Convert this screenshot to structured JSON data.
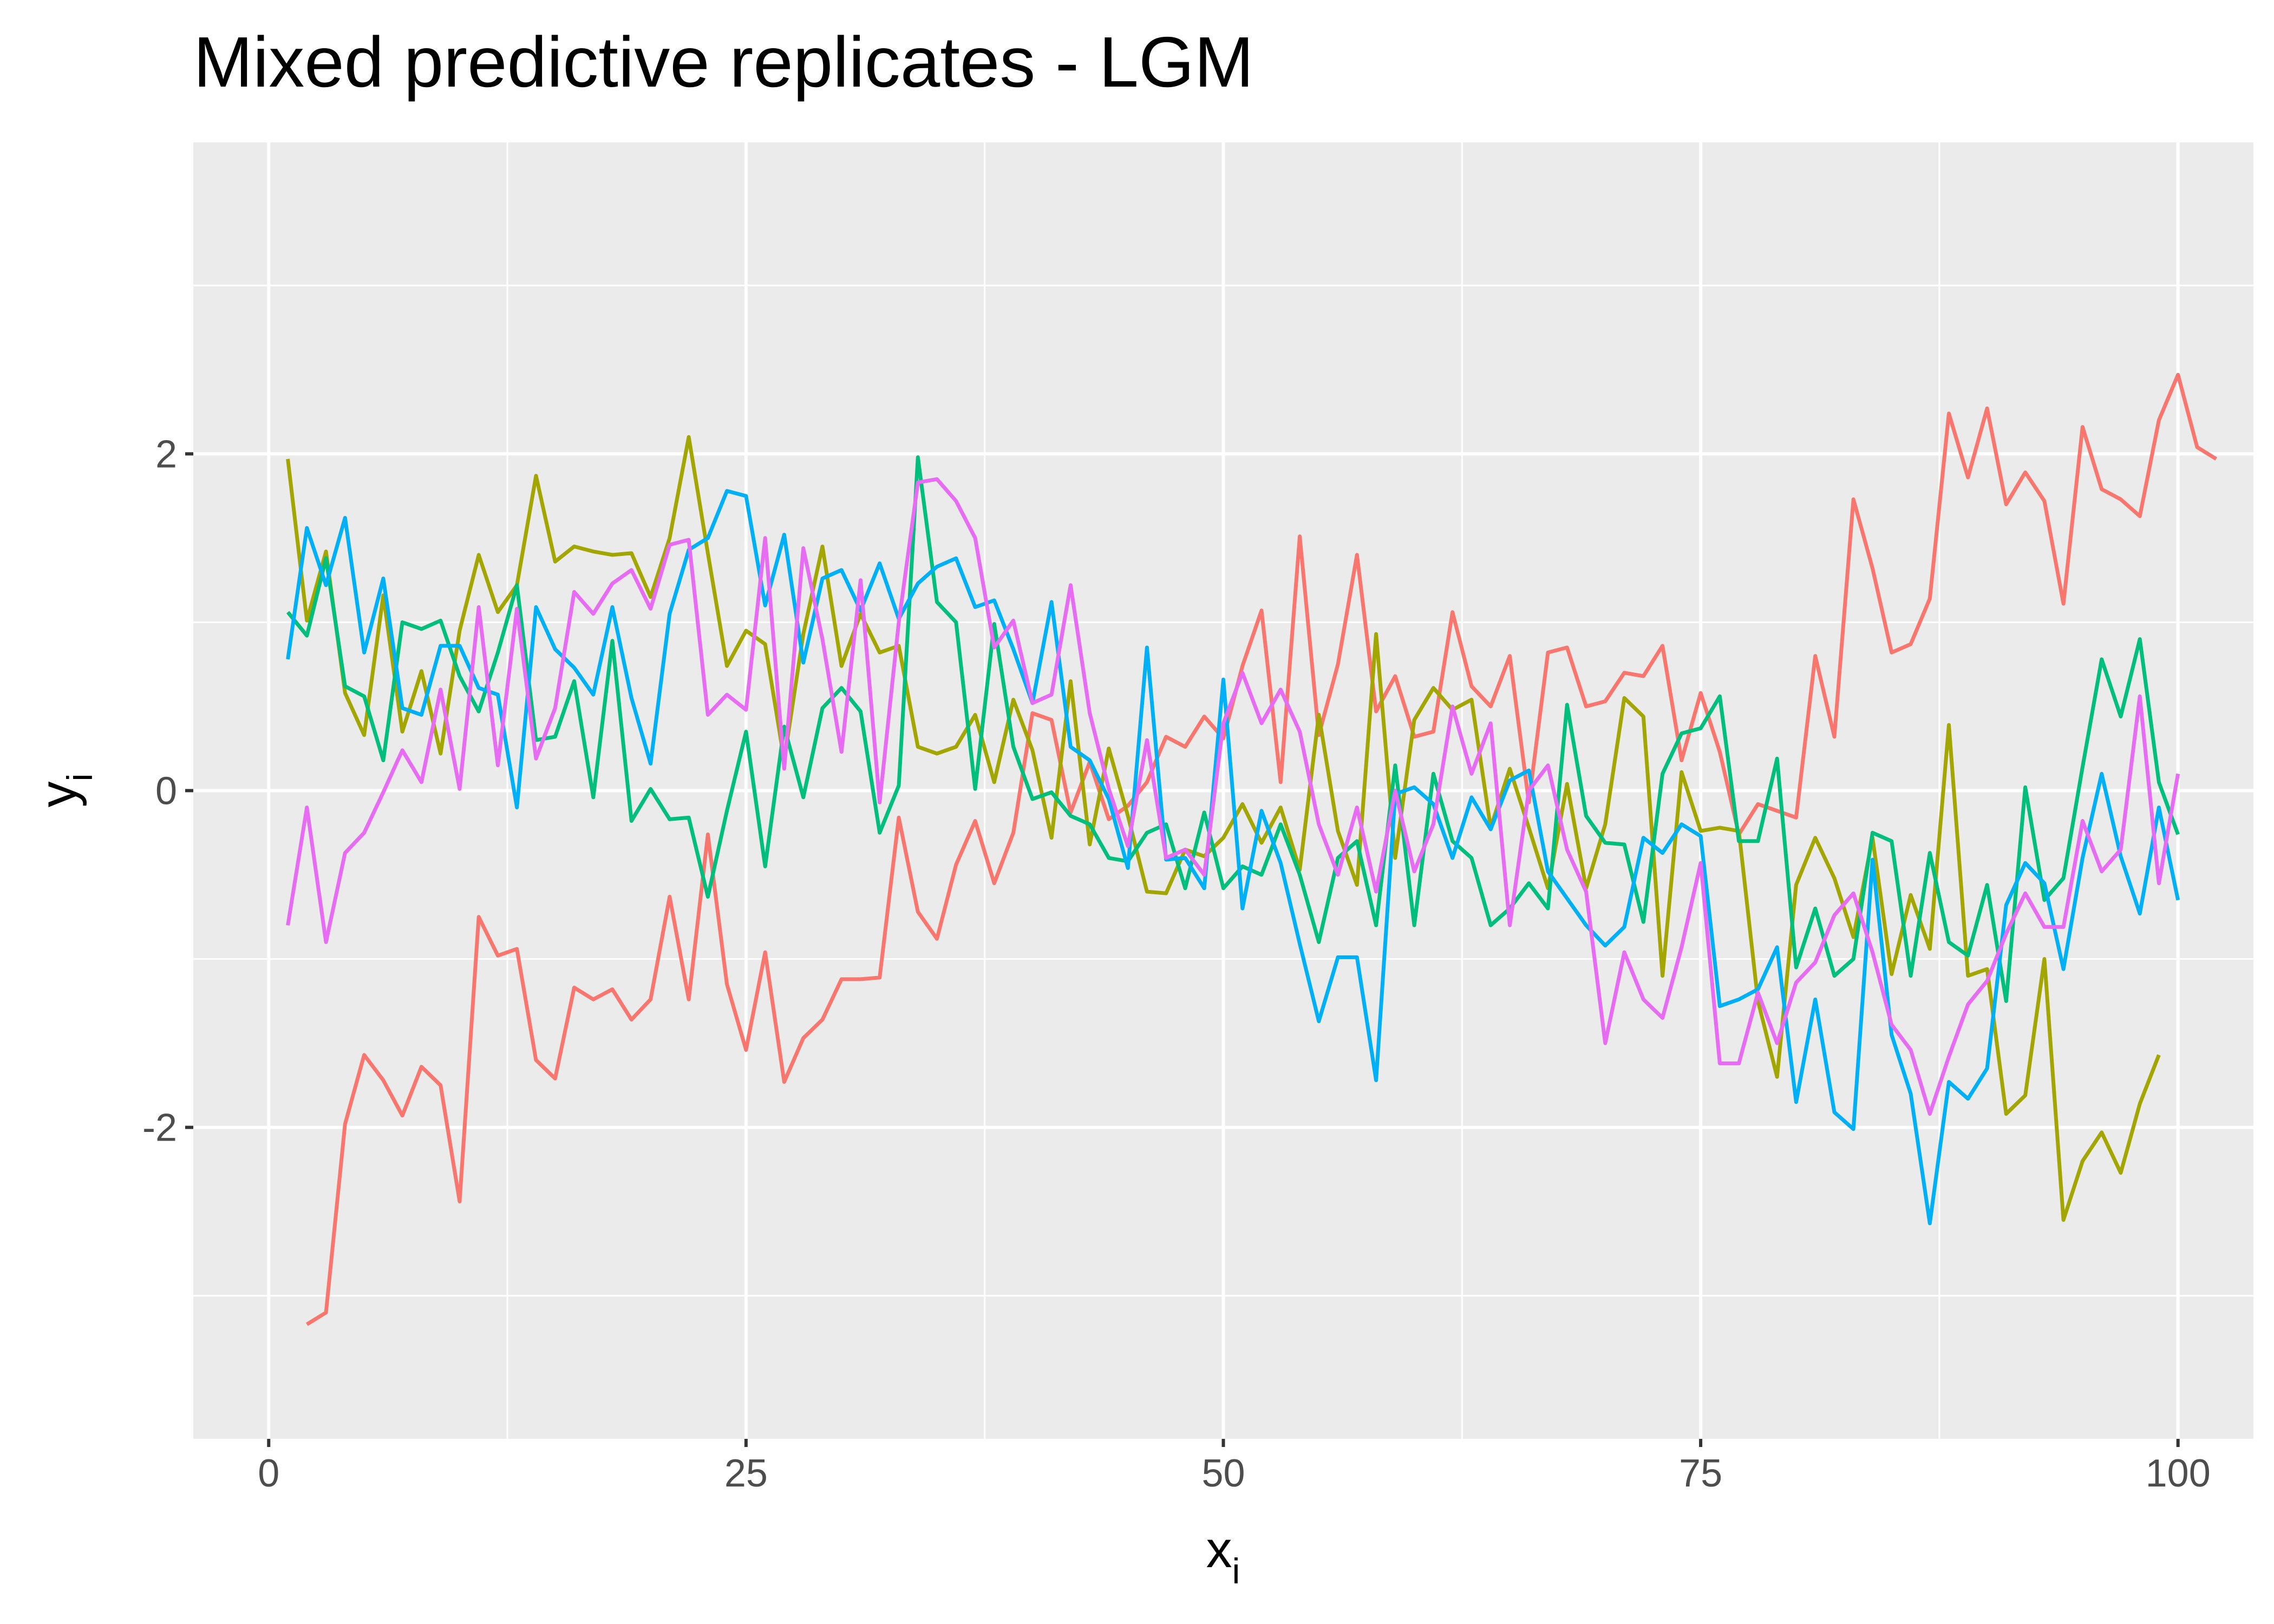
{
  "chart_data": {
    "type": "line",
    "title": "Mixed predictive replicates - LGM",
    "xlabel": "x",
    "xlabel_sub": "i",
    "ylabel": "y",
    "ylabel_sub": "i",
    "xlim": [
      -3.95,
      103.95
    ],
    "ylim": [
      -3.85,
      3.85
    ],
    "x_ticks": [
      0,
      25,
      50,
      75,
      100
    ],
    "x_tick_labels": [
      "0",
      "25",
      "50",
      "75",
      "100"
    ],
    "y_ticks": [
      -2,
      0,
      2
    ],
    "y_tick_labels": [
      "-2",
      "0",
      "2"
    ],
    "x_minor": [
      12.5,
      37.5,
      62.5,
      87.5
    ],
    "y_minor": [
      -3,
      -1,
      1,
      3
    ],
    "grid": true,
    "legend": "none",
    "colors": {
      "panel": "#ebebeb",
      "grid": "#ffffff",
      "tick": "#333333",
      "tick_label": "#4d4d4d"
    },
    "series": [
      {
        "color": "#F8766D",
        "x_start": 2,
        "values": [
          -3.17,
          -3.1,
          -1.98,
          -1.57,
          -1.72,
          -1.93,
          -1.64,
          -1.75,
          -2.44,
          -0.75,
          -0.98,
          -0.94,
          -1.6,
          -1.71,
          -1.17,
          -1.24,
          -1.18,
          -1.36,
          -1.24,
          -0.63,
          -1.24,
          -0.26,
          -1.15,
          -1.54,
          -0.96,
          -1.73,
          -1.47,
          -1.36,
          -1.12,
          -1.12,
          -1.11,
          -0.16,
          -0.72,
          -0.88,
          -0.44,
          -0.18,
          -0.55,
          -0.25,
          0.46,
          0.42,
          -0.13,
          0.17,
          -0.17,
          -0.09,
          0.05,
          0.32,
          0.26,
          0.44,
          0.31,
          0.74,
          1.07,
          0.05,
          1.51,
          0.33,
          0.75,
          1.4,
          0.47,
          0.68,
          0.32,
          0.35,
          1.06,
          0.62,
          0.5,
          0.8,
          -0.07,
          0.82,
          0.85,
          0.5,
          0.53,
          0.7,
          0.68,
          0.86,
          0.18,
          0.58,
          0.23,
          -0.26,
          -0.08,
          -0.12,
          -0.16,
          0.8,
          0.32,
          1.73,
          1.32,
          0.82,
          0.87,
          1.14,
          2.24,
          1.86,
          2.27,
          1.7,
          1.89,
          1.72,
          1.11,
          2.16,
          1.79,
          1.73,
          1.63,
          2.2,
          2.47,
          2.04,
          1.97
        ]
      },
      {
        "color": "#A3A500",
        "x_start": 1,
        "values": [
          1.97,
          1.01,
          1.42,
          0.58,
          0.33,
          1.16,
          0.35,
          0.71,
          0.22,
          0.95,
          1.4,
          1.06,
          1.22,
          1.87,
          1.36,
          1.45,
          1.42,
          1.4,
          1.41,
          1.15,
          1.5,
          2.1,
          1.41,
          0.74,
          0.95,
          0.87,
          0.18,
          0.93,
          1.45,
          0.74,
          1.05,
          0.82,
          0.86,
          0.26,
          0.22,
          0.26,
          0.45,
          0.05,
          0.54,
          0.24,
          -0.28,
          0.65,
          -0.32,
          0.25,
          -0.15,
          -0.6,
          -0.61,
          -0.35,
          -0.39,
          -0.28,
          -0.08,
          -0.31,
          -0.1,
          -0.47,
          0.45,
          -0.24,
          -0.56,
          0.93,
          -0.4,
          0.42,
          0.61,
          0.48,
          0.54,
          -0.22,
          0.13,
          -0.22,
          -0.58,
          0.04,
          -0.58,
          -0.2,
          0.55,
          0.44,
          -1.1,
          0.11,
          -0.24,
          -0.22,
          -0.24,
          -1.25,
          -1.7,
          -0.56,
          -0.28,
          -0.52,
          -0.87,
          -0.28,
          -1.09,
          -0.62,
          -0.94,
          0.39,
          -1.1,
          -1.06,
          -1.92,
          -1.81,
          -1.0,
          -2.55,
          -2.2,
          -2.03,
          -2.27,
          -1.86,
          -1.57
        ]
      },
      {
        "color": "#00BF7D",
        "x_start": 1,
        "values": [
          1.06,
          0.92,
          1.38,
          0.62,
          0.56,
          0.18,
          1.0,
          0.96,
          1.01,
          0.68,
          0.47,
          0.82,
          1.22,
          0.3,
          0.32,
          0.65,
          -0.04,
          0.89,
          -0.18,
          0.01,
          -0.17,
          -0.16,
          -0.63,
          -0.12,
          0.35,
          -0.45,
          0.38,
          -0.04,
          0.49,
          0.61,
          0.47,
          -0.25,
          0.03,
          1.98,
          1.12,
          1.0,
          0.01,
          0.99,
          0.26,
          -0.05,
          -0.01,
          -0.15,
          -0.2,
          -0.4,
          -0.42,
          -0.25,
          -0.2,
          -0.58,
          -0.13,
          -0.58,
          -0.45,
          -0.5,
          -0.2,
          -0.5,
          -0.9,
          -0.4,
          -0.3,
          -0.8,
          0.15,
          -0.8,
          0.1,
          -0.3,
          -0.4,
          -0.8,
          -0.7,
          -0.55,
          -0.7,
          0.51,
          -0.15,
          -0.31,
          -0.32,
          -0.78,
          0.1,
          0.34,
          0.37,
          0.56,
          -0.3,
          -0.3,
          0.19,
          -1.05,
          -0.7,
          -1.1,
          -1.0,
          -0.25,
          -0.3,
          -1.1,
          -0.37,
          -0.9,
          -0.98,
          -0.56,
          -1.25,
          0.02,
          -0.65,
          -0.52,
          0.14,
          0.78,
          0.44,
          0.9,
          0.05,
          -0.26
        ]
      },
      {
        "color": "#00B0F6",
        "x_start": 1,
        "values": [
          0.78,
          1.56,
          1.22,
          1.62,
          0.82,
          1.26,
          0.49,
          0.45,
          0.86,
          0.86,
          0.61,
          0.57,
          -0.1,
          1.09,
          0.84,
          0.73,
          0.57,
          1.09,
          0.55,
          0.16,
          1.05,
          1.43,
          1.5,
          1.78,
          1.75,
          1.1,
          1.52,
          0.76,
          1.26,
          1.31,
          1.07,
          1.35,
          1.02,
          1.23,
          1.33,
          1.38,
          1.09,
          1.13,
          0.84,
          0.52,
          1.12,
          0.26,
          0.18,
          -0.05,
          -0.46,
          0.85,
          -0.41,
          -0.4,
          -0.58,
          0.66,
          -0.7,
          -0.12,
          -0.43,
          -0.91,
          -1.37,
          -0.99,
          -0.99,
          -1.72,
          -0.02,
          0.02,
          -0.08,
          -0.4,
          -0.04,
          -0.23,
          0.06,
          0.12,
          -0.48,
          -0.64,
          -0.8,
          -0.92,
          -0.81,
          -0.28,
          -0.37,
          -0.2,
          -0.27,
          -1.28,
          -1.24,
          -1.18,
          -0.93,
          -1.85,
          -1.24,
          -1.91,
          -2.01,
          -0.41,
          -1.45,
          -1.8,
          -2.57,
          -1.73,
          -1.83,
          -1.65,
          -0.68,
          -0.43,
          -0.55,
          -1.06,
          -0.4,
          0.1,
          -0.39,
          -0.73,
          -0.1,
          -0.65
        ]
      },
      {
        "color": "#E76BF3",
        "x_start": 1,
        "values": [
          -0.8,
          -0.1,
          -0.9,
          -0.37,
          -0.25,
          -0.01,
          0.24,
          0.05,
          0.6,
          0.01,
          1.09,
          0.15,
          1.08,
          0.19,
          0.49,
          1.18,
          1.05,
          1.23,
          1.31,
          1.08,
          1.46,
          1.49,
          0.45,
          0.57,
          0.48,
          1.5,
          0.13,
          1.44,
          0.9,
          0.23,
          1.25,
          -0.07,
          1.0,
          1.83,
          1.85,
          1.72,
          1.5,
          0.85,
          1.01,
          0.52,
          0.57,
          1.22,
          0.46,
          0.01,
          -0.33,
          0.3,
          -0.4,
          -0.35,
          -0.5,
          0.4,
          0.7,
          0.4,
          0.6,
          0.35,
          -0.2,
          -0.5,
          -0.1,
          -0.6,
          0.0,
          -0.48,
          -0.2,
          0.5,
          0.1,
          0.4,
          -0.8,
          0.0,
          0.15,
          -0.35,
          -0.6,
          -1.5,
          -0.96,
          -1.24,
          -1.35,
          -0.93,
          -0.43,
          -1.62,
          -1.62,
          -1.2,
          -1.5,
          -1.14,
          -1.02,
          -0.74,
          -0.61,
          -0.96,
          -1.39,
          -1.54,
          -1.92,
          -1.58,
          -1.27,
          -1.13,
          -0.85,
          -0.61,
          -0.81,
          -0.81,
          -0.18,
          -0.48,
          -0.35,
          0.56,
          -0.55,
          0.1
        ]
      }
    ]
  }
}
